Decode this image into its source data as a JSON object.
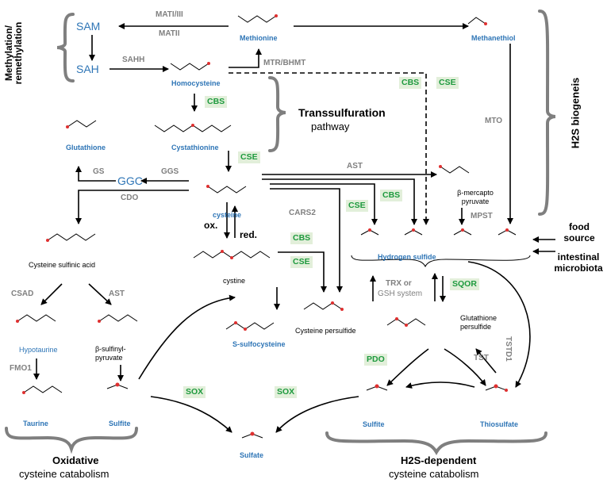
{
  "groups": {
    "methylation": "Methylation/ remethylation",
    "transsulfuration_title": "Transsulfuration",
    "transsulfuration_sub": "pathway",
    "h2s_biogenesis": "H2S biogeneis",
    "oxidative_title": "Oxidative",
    "oxidative_sub": "cysteine catabolism",
    "h2s_dep_title": "H2S-dependent",
    "h2s_dep_sub": "cysteine catabolism"
  },
  "sources": {
    "food": "food source",
    "microbiota": "intestinal microbiota"
  },
  "metabolites": {
    "sam": "SAM",
    "sah": "SAH",
    "ggc": "GGC",
    "methionine": "Methionine",
    "methanethiol": "Methanethiol",
    "homocysteine": "Homocysteine",
    "glutathione": "Glutathione",
    "cystathionine": "Cystathionine",
    "cysteine": "cysteine",
    "cystine": "cystine",
    "mercaptopyruvate": "β-mercapto pyruvate",
    "hydrogen_sulfide": "Hydrogen sulfide",
    "cysteine_sulfinic_acid": "Cysteine sulfinic acid",
    "hypotaurine": "Hypotaurine",
    "taurine": "Taurine",
    "sulfinylpyruvate": "β-sulfinyl- pyruvate",
    "sulfite_left": "Sulfite",
    "s_sulfocysteine": "S-sulfocysteine",
    "sulfate": "Sulfate",
    "cysteine_persulfide": "Cysteine persulfide",
    "glutathione_persulfide": "Glutathione persulfide",
    "sulfite_right": "Sulfite",
    "thiosulfate": "Thiosulfate"
  },
  "enzymes_grey": {
    "mati_iii": "MATI/III",
    "matii": "MATII",
    "sahh": "SAHH",
    "mtr_bhmt": "MTR/BHMT",
    "mto": "MTO",
    "gs": "GS",
    "ggs": "GGS",
    "cdo": "CDO",
    "ast_top": "AST",
    "mpst": "MPST",
    "cars2": "CARS2",
    "csad": "CSAD",
    "ast_left": "AST",
    "fmo1": "FMO1",
    "trx": "TRX or",
    "gsh_system": "GSH system",
    "tst": "TST",
    "tstd1": "TSTD1"
  },
  "enzymes_green": {
    "cbs_top": "CBS",
    "cse_top": "CSE",
    "cbs_homocys": "CBS",
    "cse_cysta": "CSE",
    "cbs_mid": "CBS",
    "cse_mid": "CSE",
    "cbs_cystine": "CBS",
    "cse_cystine": "CSE",
    "sqor": "SQOR",
    "pdo": "PDO",
    "sox_left": "SOX",
    "sox_right": "SOX"
  },
  "redox": {
    "ox": "ox.",
    "red": "red."
  },
  "colors": {
    "metabolite": "#2e75b6",
    "enzyme_grey": "#808080",
    "enzyme_green": "#1e9a3e",
    "enzyme_green_bg": "#e2efda",
    "sulfur": "#e03030",
    "line": "#000000",
    "brace": "#7f7f7f"
  }
}
